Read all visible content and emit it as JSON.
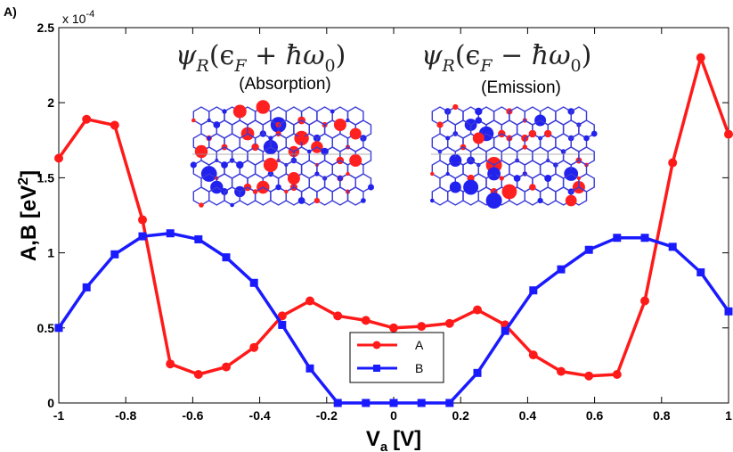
{
  "panel_label": "A)",
  "chart_data": {
    "type": "line",
    "title": "",
    "xlabel_main": "V",
    "xlabel_sub": "a",
    "xlabel_units": "[V]",
    "ylabel_main": "A,B [eV",
    "ylabel_sup": "2",
    "ylabel_close": "]",
    "y_exponent_base": "x 10",
    "y_exponent_power": "-4",
    "xlim": [
      -1,
      1
    ],
    "ylim": [
      0,
      2.5
    ],
    "x_ticks": [
      -1,
      -0.8,
      -0.6,
      -0.4,
      -0.2,
      0,
      0.2,
      0.4,
      0.6,
      0.8,
      1
    ],
    "x_tick_labels": [
      "-1",
      "-0.8",
      "-0.6",
      "-0.4",
      "-0.2",
      "0",
      "0.2",
      "0.4",
      "0.6",
      "0.8",
      "1"
    ],
    "y_ticks": [
      0,
      0.5,
      1,
      1.5,
      2,
      2.5
    ],
    "y_tick_labels": [
      "0",
      "0.5",
      "1",
      "1.5",
      "2",
      "2.5"
    ],
    "legend_position": "bottom-center",
    "series": [
      {
        "name": "A",
        "color": "#ff1a1a",
        "marker": "circle",
        "x": [
          -1,
          -0.917,
          -0.833,
          -0.75,
          -0.667,
          -0.583,
          -0.5,
          -0.417,
          -0.333,
          -0.25,
          -0.167,
          -0.083,
          0,
          0.083,
          0.167,
          0.25,
          0.333,
          0.417,
          0.5,
          0.583,
          0.667,
          0.75,
          0.833,
          0.917,
          1
        ],
        "y": [
          1.63,
          1.89,
          1.85,
          1.22,
          0.26,
          0.19,
          0.24,
          0.37,
          0.58,
          0.68,
          0.58,
          0.55,
          0.5,
          0.51,
          0.53,
          0.62,
          0.52,
          0.32,
          0.21,
          0.18,
          0.19,
          0.68,
          1.6,
          2.3,
          1.79
        ]
      },
      {
        "name": "B",
        "color": "#1a1aff",
        "marker": "square",
        "x": [
          -1,
          -0.917,
          -0.833,
          -0.75,
          -0.667,
          -0.583,
          -0.5,
          -0.417,
          -0.333,
          -0.25,
          -0.167,
          -0.083,
          0,
          0.083,
          0.167,
          0.25,
          0.333,
          0.417,
          0.5,
          0.583,
          0.667,
          0.75,
          0.833,
          0.917,
          1
        ],
        "y": [
          0.5,
          0.77,
          0.99,
          1.11,
          1.13,
          1.09,
          0.97,
          0.8,
          0.52,
          0.23,
          0,
          0,
          0,
          0,
          0,
          0.2,
          0.48,
          0.75,
          0.89,
          1.02,
          1.1,
          1.1,
          1.04,
          0.87,
          0.61
        ]
      }
    ],
    "insets": [
      {
        "formula_main": "ψ",
        "formula_sub": "R",
        "formula_args": "(ϵ",
        "formula_args_sub": "F",
        "formula_op": " + ħω",
        "formula_op_sub": "0",
        "formula_close": ")",
        "caption": "(Absorption)"
      },
      {
        "formula_main": "ψ",
        "formula_sub": "R",
        "formula_args": "(ϵ",
        "formula_args_sub": "F",
        "formula_op": " − ħω",
        "formula_op_sub": "0",
        "formula_close": ")",
        "caption": "(Emission)"
      }
    ]
  }
}
